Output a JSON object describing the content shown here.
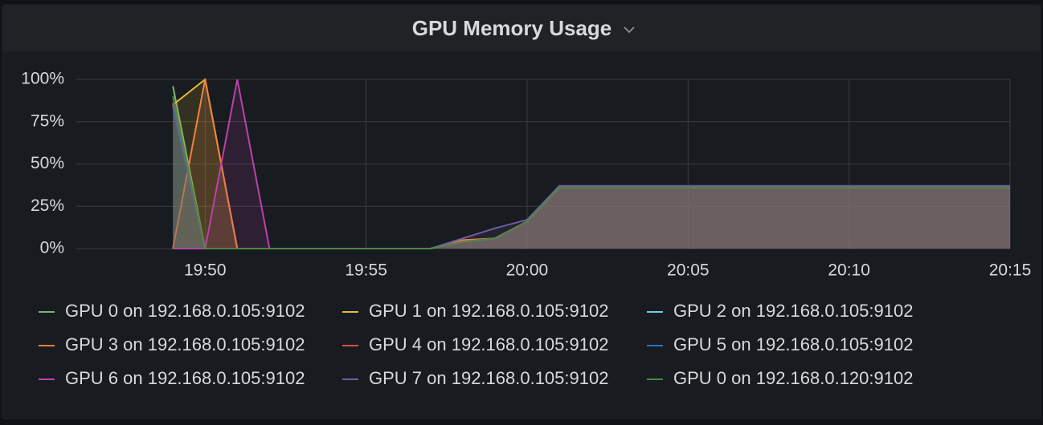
{
  "chart_data": {
    "type": "line",
    "title": "GPU Memory Usage",
    "x": [
      "19:49",
      "19:50",
      "19:51",
      "19:52",
      "19:53",
      "19:54",
      "19:55",
      "19:56",
      "19:57",
      "19:58",
      "19:59",
      "20:00",
      "20:01",
      "20:02",
      "20:03",
      "20:04",
      "20:05",
      "20:06",
      "20:07",
      "20:08",
      "20:09",
      "20:10",
      "20:11",
      "20:12",
      "20:13",
      "20:14",
      "20:15"
    ],
    "xlim": [
      "19:46",
      "20:15"
    ],
    "xticks": [
      "19:50",
      "19:55",
      "20:00",
      "20:05",
      "20:10",
      "20:15"
    ],
    "ylim": [
      0,
      100
    ],
    "yticks": [
      {
        "value": 0,
        "label": "0%"
      },
      {
        "value": 25,
        "label": "25%"
      },
      {
        "value": 50,
        "label": "50%"
      },
      {
        "value": 75,
        "label": "75%"
      },
      {
        "value": 100,
        "label": "100%"
      }
    ],
    "grid": true,
    "fill": true,
    "series": [
      {
        "name": "GPU 0 on 192.168.0.105:9102",
        "color": "#7eb26d",
        "values": [
          96,
          0,
          0,
          0,
          0,
          0,
          0,
          0,
          0,
          4,
          6,
          16,
          36,
          36,
          36,
          36,
          36,
          36,
          36,
          36,
          36,
          36,
          36,
          36,
          36,
          36,
          36
        ]
      },
      {
        "name": "GPU 1 on 192.168.0.105:9102",
        "color": "#eab839",
        "values": [
          85,
          100,
          0,
          0,
          0,
          0,
          0,
          0,
          0,
          4,
          6,
          16,
          36,
          36,
          36,
          36,
          36,
          36,
          36,
          36,
          36,
          36,
          36,
          36,
          36,
          36,
          36
        ]
      },
      {
        "name": "GPU 2 on 192.168.0.105:9102",
        "color": "#6ed0e0",
        "values": [
          85,
          0,
          0,
          0,
          0,
          0,
          0,
          0,
          0,
          4,
          6,
          16,
          36,
          36,
          36,
          36,
          36,
          36,
          36,
          36,
          36,
          36,
          36,
          36,
          36,
          36,
          36
        ]
      },
      {
        "name": "GPU 3 on 192.168.0.105:9102",
        "color": "#ef843c",
        "values": [
          0,
          100,
          0,
          0,
          0,
          0,
          0,
          0,
          0,
          5,
          6,
          16,
          36,
          36,
          36,
          36,
          36,
          36,
          36,
          36,
          36,
          36,
          36,
          36,
          36,
          36,
          36
        ]
      },
      {
        "name": "GPU 4 on 192.168.0.105:9102",
        "color": "#e24d42",
        "values": [
          86,
          0,
          0,
          0,
          0,
          0,
          0,
          0,
          0,
          4,
          6,
          16,
          36,
          36,
          36,
          36,
          36,
          36,
          36,
          36,
          36,
          36,
          36,
          36,
          36,
          36,
          36
        ]
      },
      {
        "name": "GPU 5 on 192.168.0.105:9102",
        "color": "#1f78c1",
        "values": [
          84,
          0,
          0,
          0,
          0,
          0,
          0,
          0,
          0,
          4,
          6,
          16,
          36,
          36,
          36,
          36,
          36,
          36,
          36,
          36,
          36,
          36,
          36,
          36,
          36,
          36,
          36
        ]
      },
      {
        "name": "GPU 6 on 192.168.0.105:9102",
        "color": "#ba43a9",
        "values": [
          0,
          0,
          100,
          0,
          0,
          0,
          0,
          0,
          0,
          4,
          6,
          16,
          37,
          37,
          37,
          37,
          37,
          37,
          37,
          37,
          37,
          37,
          37,
          37,
          37,
          37,
          37
        ]
      },
      {
        "name": "GPU 7 on 192.168.0.105:9102",
        "color": "#705da0",
        "values": [
          85,
          0,
          0,
          0,
          0,
          0,
          0,
          0,
          0,
          6,
          12,
          17,
          37,
          37,
          37,
          37,
          37,
          37,
          37,
          37,
          37,
          37,
          37,
          37,
          37,
          37,
          37
        ]
      },
      {
        "name": "GPU 0 on 192.168.0.120:9102",
        "color": "#508642",
        "values": [
          90,
          0,
          0,
          0,
          0,
          0,
          0,
          0,
          0,
          4,
          6,
          16,
          36,
          36,
          36,
          36,
          36,
          36,
          36,
          36,
          36,
          36,
          36,
          36,
          36,
          36,
          36
        ]
      }
    ]
  }
}
